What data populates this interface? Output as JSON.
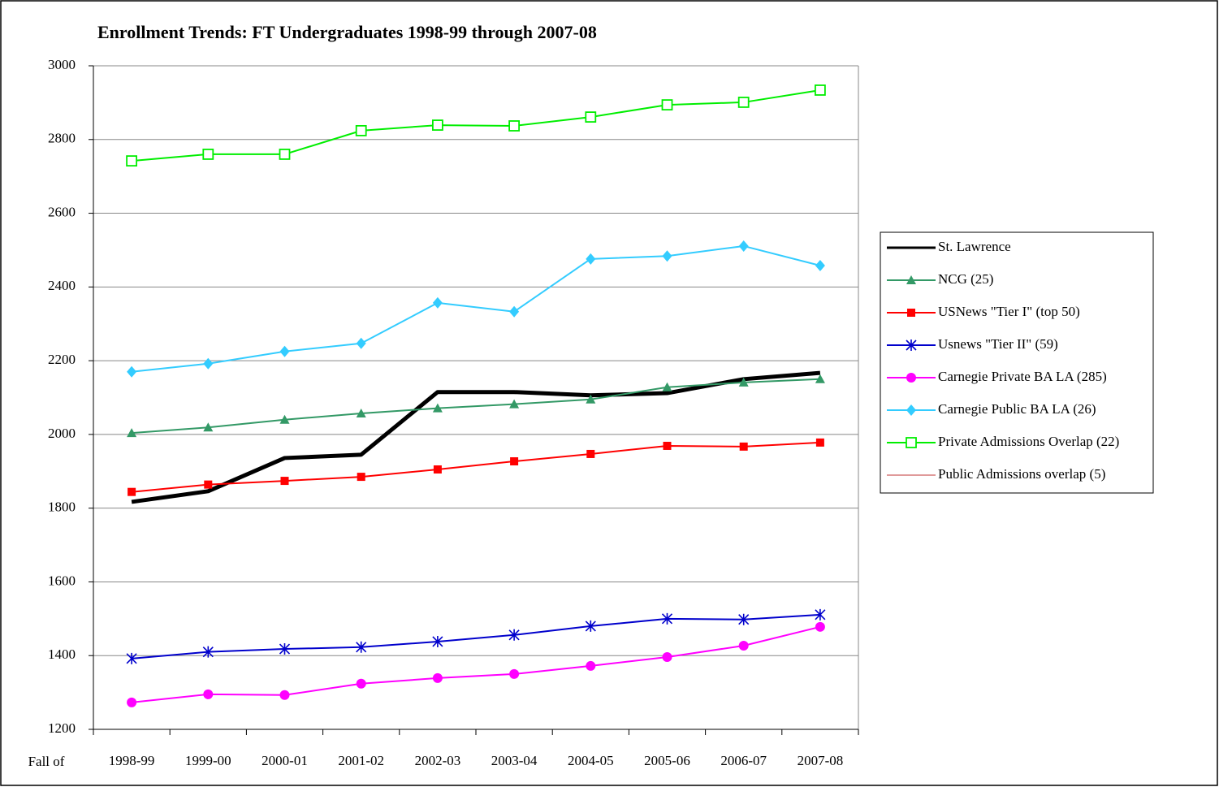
{
  "chart_data": {
    "type": "line",
    "title": "Enrollment Trends: FT Undergraduates 1998-99 through 2007-08",
    "xlabel": "Fall of",
    "categories": [
      "1998-99",
      "1999-00",
      "2000-01",
      "2001-02",
      "2002-03",
      "2003-04",
      "2004-05",
      "2005-06",
      "2006-07",
      "2007-08"
    ],
    "ylim": [
      1200,
      3000
    ],
    "yticks": [
      1200,
      1400,
      1600,
      1800,
      2000,
      2200,
      2400,
      2600,
      2800,
      3000
    ],
    "grid": true,
    "legend": "right",
    "series": [
      {
        "name": "St. Lawrence",
        "color": "#000000",
        "marker": "none",
        "linewidth": 5,
        "values": [
          1817,
          1846,
          1936,
          1945,
          2115,
          2115,
          2106,
          2112,
          2150,
          2167
        ]
      },
      {
        "name": "NCG (25)",
        "color": "#339966",
        "marker": "triangle",
        "linewidth": 2,
        "values": [
          2004,
          2019,
          2040,
          2057,
          2071,
          2082,
          2095,
          2128,
          2141,
          2150
        ]
      },
      {
        "name": "USNews \"Tier I\" (top 50)",
        "color": "#ff0000",
        "marker": "square",
        "linewidth": 2,
        "values": [
          1844,
          1864,
          1874,
          1885,
          1905,
          1927,
          1947,
          1969,
          1967,
          1978
        ]
      },
      {
        "name": "Usnews \"Tier II\" (59)",
        "color": "#0000cc",
        "marker": "asterisk",
        "linewidth": 2,
        "values": [
          1392,
          1410,
          1418,
          1423,
          1438,
          1456,
          1480,
          1500,
          1498,
          1511
        ]
      },
      {
        "name": "Carnegie Private BA LA (285)",
        "color": "#ff00ff",
        "marker": "circle",
        "linewidth": 2,
        "values": [
          1273,
          1295,
          1293,
          1324,
          1339,
          1350,
          1372,
          1396,
          1427,
          1478
        ]
      },
      {
        "name": "Carnegie Public BA LA (26)",
        "color": "#33ccff",
        "marker": "diamond",
        "linewidth": 2,
        "values": [
          2170,
          2192,
          2225,
          2247,
          2357,
          2333,
          2476,
          2484,
          2511,
          2458
        ]
      },
      {
        "name": "Private Admissions Overlap (22)",
        "color": "#00ee00",
        "marker": "open-square",
        "linewidth": 2,
        "values": [
          2742,
          2760,
          2760,
          2824,
          2839,
          2837,
          2861,
          2894,
          2901,
          2934
        ]
      },
      {
        "name": "Public Admissions overlap (5)",
        "color": "#e09a9a",
        "marker": "none",
        "linewidth": 2,
        "values": [
          null,
          null,
          null,
          null,
          null,
          null,
          null,
          null,
          null,
          null
        ]
      }
    ]
  }
}
